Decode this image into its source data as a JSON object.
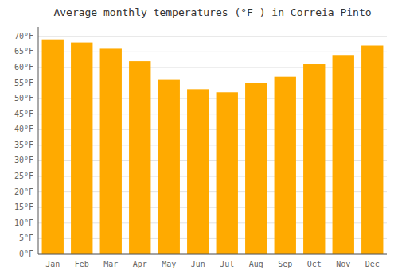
{
  "chart_data": {
    "type": "bar",
    "title": "Average monthly temperatures (°F ) in Correia Pinto",
    "categories": [
      "Jan",
      "Feb",
      "Mar",
      "Apr",
      "May",
      "Jun",
      "Jul",
      "Aug",
      "Sep",
      "Oct",
      "Nov",
      "Dec"
    ],
    "values": [
      69,
      68,
      66,
      62,
      56,
      53,
      52,
      55,
      57,
      61,
      64,
      67
    ],
    "color": "#FFAA00",
    "ylim": [
      0,
      73
    ],
    "yticks": [
      {
        "value": 0,
        "label": "0°F"
      },
      {
        "value": 5,
        "label": "5°F"
      },
      {
        "value": 10,
        "label": "10°F"
      },
      {
        "value": 15,
        "label": "15°F"
      },
      {
        "value": 20,
        "label": "20°F"
      },
      {
        "value": 25,
        "label": "25°F"
      },
      {
        "value": 30,
        "label": "30°F"
      },
      {
        "value": 35,
        "label": "35°F"
      },
      {
        "value": 40,
        "label": "40°F"
      },
      {
        "value": 45,
        "label": "45°F"
      },
      {
        "value": 50,
        "label": "50°F"
      },
      {
        "value": 55,
        "label": "55°F"
      },
      {
        "value": 60,
        "label": "60°F"
      },
      {
        "value": 65,
        "label": "65°F"
      },
      {
        "value": 70,
        "label": "70°F"
      }
    ],
    "grid": true
  }
}
